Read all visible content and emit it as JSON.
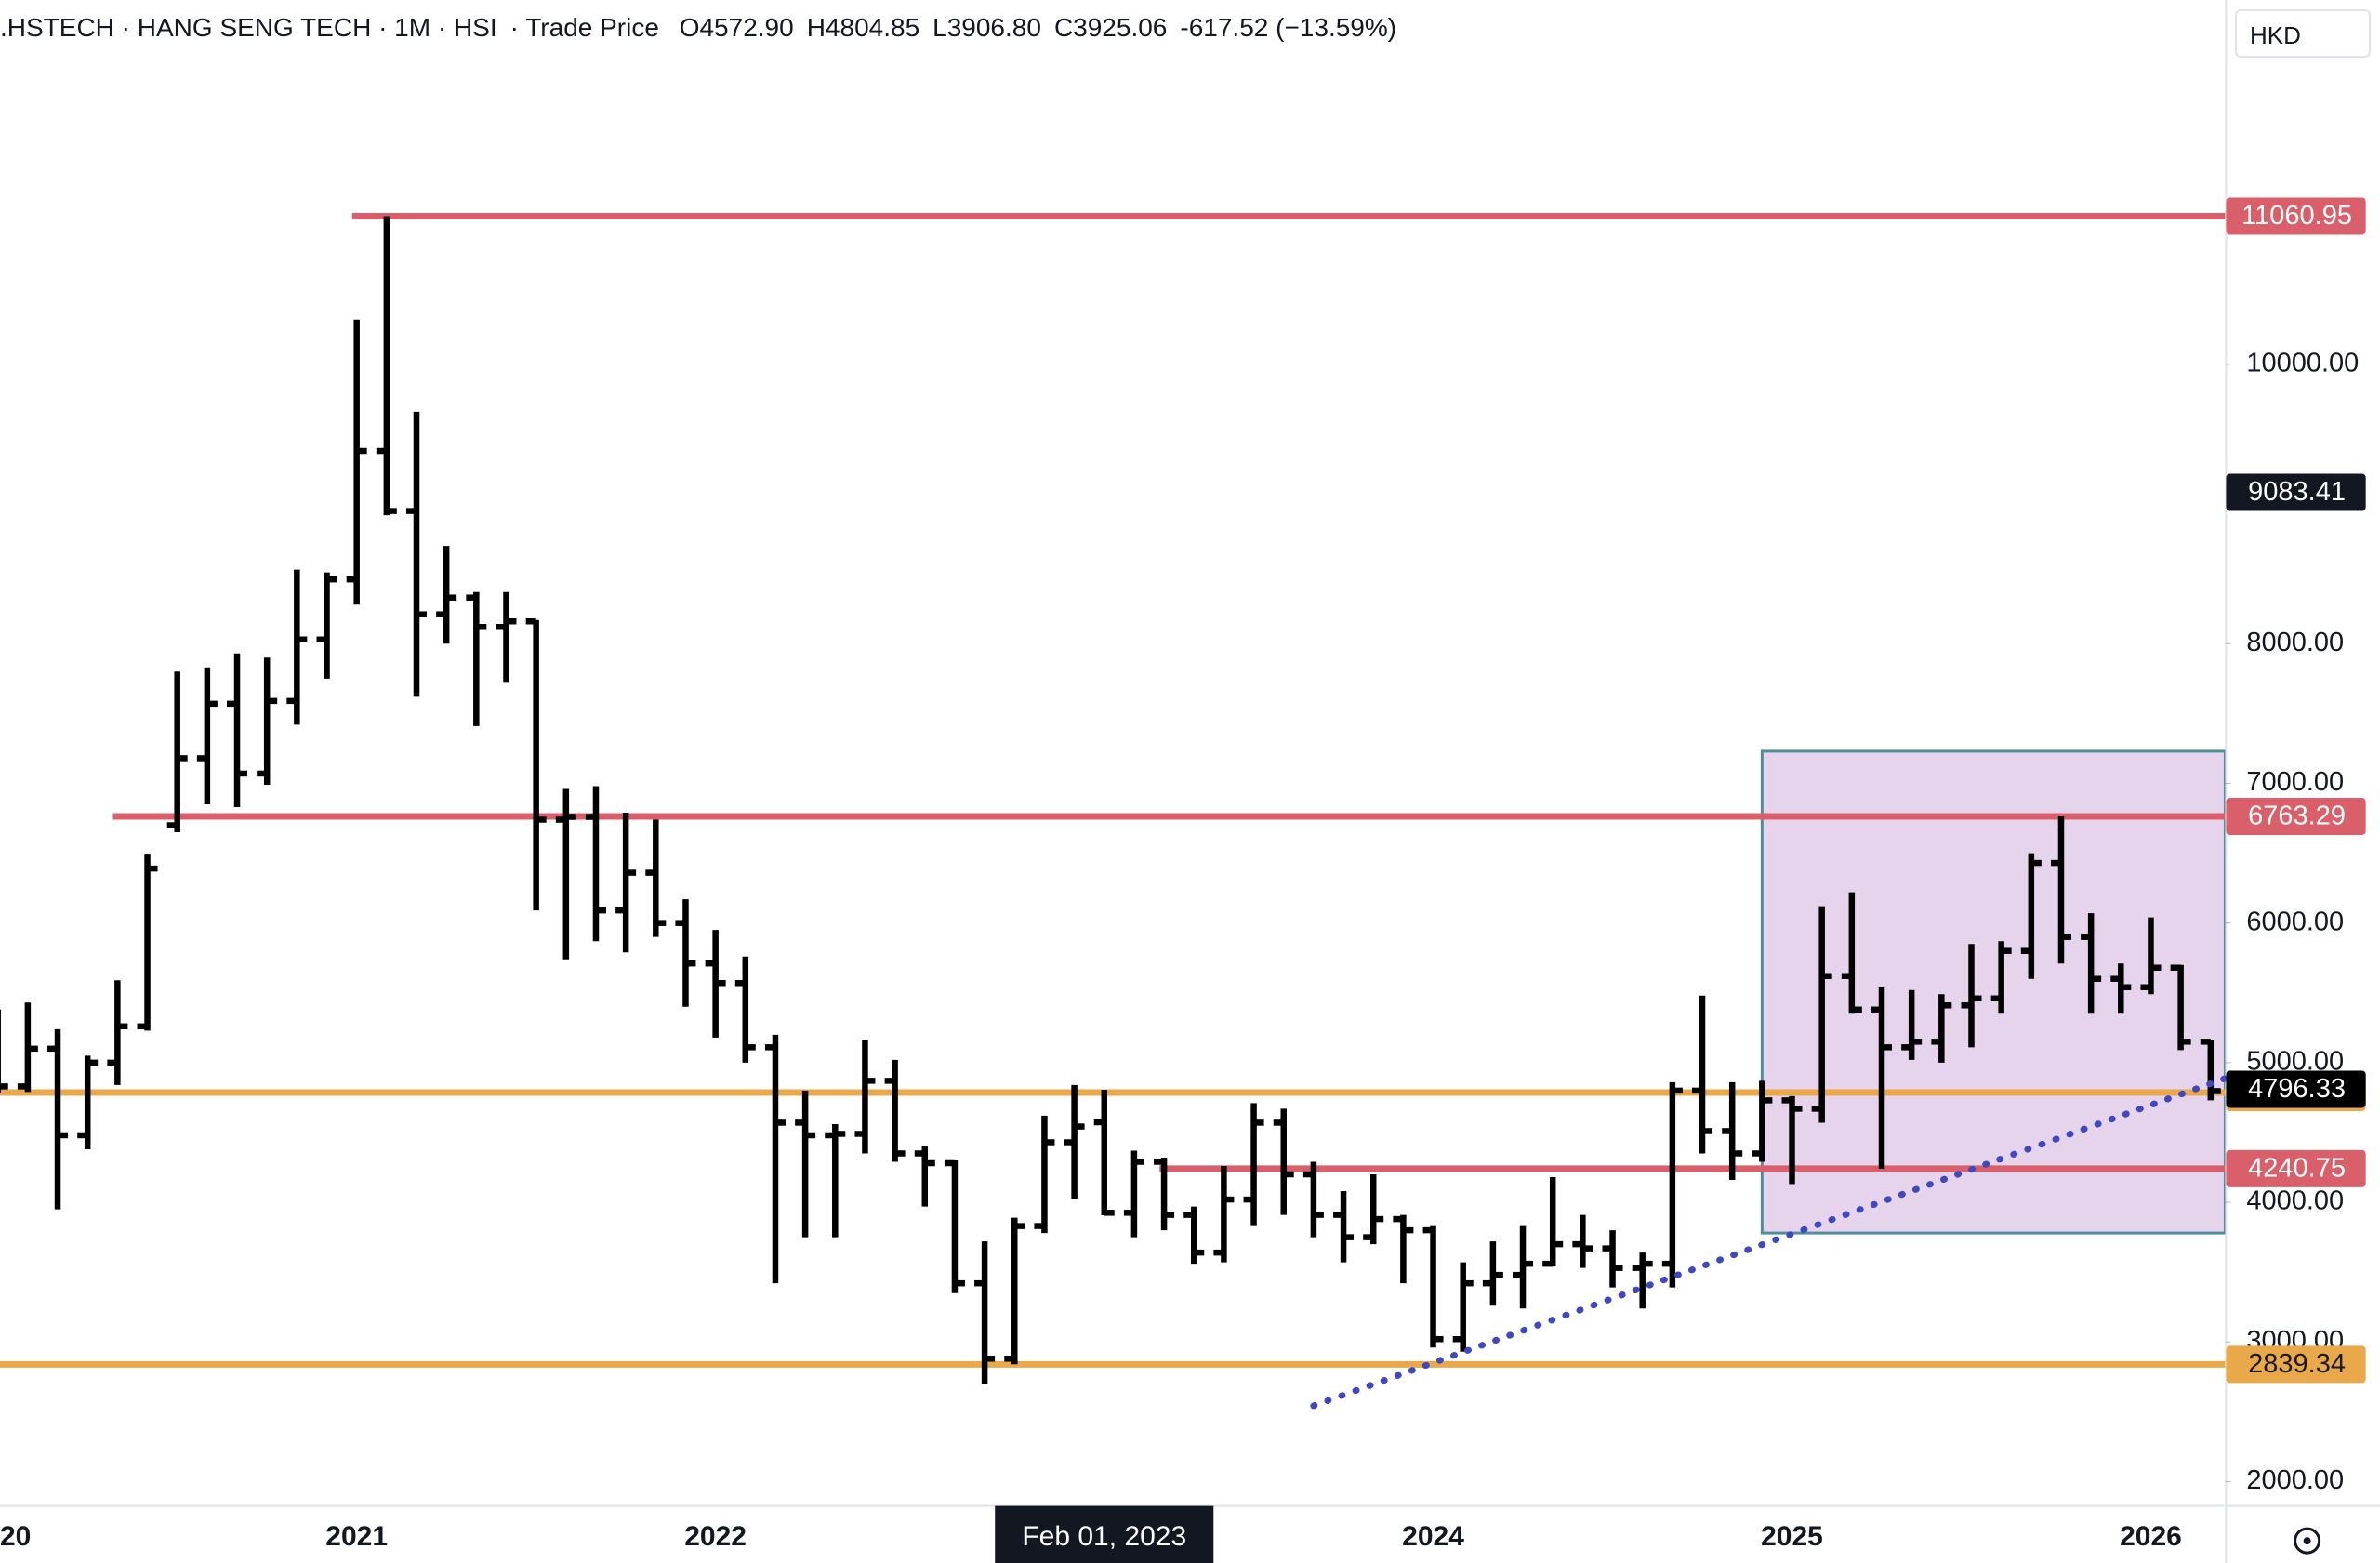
{
  "header": {
    "title": ".HSTECH · HANG SENG TECH · 1M · HSI",
    "source": "· Trade Price",
    "legend": [
      "O4572.90",
      "H4804.85",
      "L3906.80",
      "C3925.06",
      "-617.52 (−13.59%)"
    ],
    "currency": "HKD"
  },
  "chart_data": {
    "type": "ohlc",
    "color": "#000000",
    "x": [
      "2020-01",
      "2020-02",
      "2020-03",
      "2020-04",
      "2020-05",
      "2020-06",
      "2020-07",
      "2020-08",
      "2020-09",
      "2020-10",
      "2020-11",
      "2020-12",
      "2021-01",
      "2021-02",
      "2021-03",
      "2021-04",
      "2021-05",
      "2021-06",
      "2021-07",
      "2021-08",
      "2021-09",
      "2021-10",
      "2021-11",
      "2021-12",
      "2022-01",
      "2022-02",
      "2022-03",
      "2022-04",
      "2022-05",
      "2022-06",
      "2022-07",
      "2022-08",
      "2022-09",
      "2022-10",
      "2022-11",
      "2022-12",
      "2023-01",
      "2023-02",
      "2023-03",
      "2023-04",
      "2023-05",
      "2023-06",
      "2023-07",
      "2023-08",
      "2023-09",
      "2023-10",
      "2023-11",
      "2023-12",
      "2024-01",
      "2024-02",
      "2024-03",
      "2024-04",
      "2024-05",
      "2024-06",
      "2024-07",
      "2024-08",
      "2024-09",
      "2024-10",
      "2024-11",
      "2024-12",
      "2025-01",
      "2025-02",
      "2025-03",
      "2025-04",
      "2025-05",
      "2025-06",
      "2025-07",
      "2025-08",
      "2025-09",
      "2025-10",
      "2025-11",
      "2025-12",
      "2026-01",
      "2026-02",
      "2026-03"
    ],
    "open": [
      5000,
      4830,
      5100,
      4480,
      5000,
      5260,
      6700,
      7180,
      7570,
      7070,
      7590,
      8030,
      8460,
      9380,
      8950,
      8210,
      8330,
      8120,
      8160,
      6740,
      6760,
      6090,
      6360,
      6000,
      5710,
      5570,
      5110,
      4570,
      4480,
      4490,
      4870,
      4350,
      4280,
      3420,
      2880,
      3830,
      4430,
      4572.9,
      3925,
      4290,
      3910,
      3640,
      4020,
      4570,
      4200,
      3910,
      3750,
      3880,
      3800,
      3020,
      3420,
      3480,
      3560,
      3700,
      3670,
      3530,
      3560,
      4800,
      4510,
      4350,
      4730,
      4670,
      5620,
      5380,
      5110,
      5150,
      5410,
      5460,
      5800,
      6430,
      5900,
      5600,
      5540,
      5680,
      5150
    ],
    "high": [
      5380,
      5430,
      5240,
      5050,
      5590,
      6490,
      7800,
      7830,
      7930,
      7900,
      8530,
      8510,
      10320,
      11060.95,
      9660,
      8700,
      8370,
      8370,
      8170,
      6960,
      6980,
      6790,
      6740,
      6170,
      5950,
      5760,
      5200,
      4800,
      4560,
      5160,
      5020,
      4400,
      4300,
      3720,
      3890,
      4620,
      4840,
      4804.85,
      4370,
      4320,
      3970,
      4260,
      4710,
      4670,
      4290,
      4080,
      4200,
      3910,
      3830,
      3570,
      3720,
      3830,
      4180,
      3910,
      3800,
      3640,
      4860,
      5480,
      4860,
      4870,
      4760,
      6120,
      6220,
      5540,
      5520,
      5490,
      5850,
      5870,
      6500,
      6763.29,
      6070,
      5710,
      6040,
      5700,
      5160
    ],
    "low": [
      4780,
      4790,
      3950,
      4380,
      4840,
      5230,
      6650,
      6850,
      6830,
      6990,
      7420,
      7750,
      8280,
      8920,
      7620,
      8000,
      7410,
      7720,
      6090,
      5740,
      5870,
      5790,
      5900,
      5400,
      5180,
      5000,
      3420,
      3750,
      3750,
      4350,
      4290,
      3970,
      3350,
      2700,
      2840,
      3780,
      4020,
      3906.8,
      3750,
      3800,
      3560,
      3570,
      3830,
      3910,
      3750,
      3570,
      3700,
      3420,
      2960,
      2930,
      3260,
      3240,
      3540,
      3530,
      3390,
      3240,
      3390,
      4350,
      4160,
      4290,
      4130,
      4570,
      5350,
      4240.75,
      5020,
      5000,
      5110,
      5350,
      5600,
      5710,
      5350,
      5350,
      5490,
      5090,
      4730
    ],
    "close": [
      4830,
      5100,
      4480,
      5000,
      5260,
      6390,
      7180,
      7570,
      7070,
      7590,
      8030,
      8460,
      9380,
      8950,
      8210,
      8330,
      8120,
      8160,
      6740,
      6760,
      6090,
      6360,
      6000,
      5710,
      5570,
      5110,
      4570,
      4480,
      4490,
      4870,
      4350,
      4280,
      3420,
      2880,
      3830,
      4430,
      4542.58,
      3925.06,
      4290,
      3910,
      3640,
      4020,
      4570,
      4200,
      3910,
      3750,
      3880,
      3800,
      3020,
      3420,
      3480,
      3560,
      3700,
      3670,
      3530,
      3560,
      4800,
      4510,
      4350,
      4730,
      4670,
      5620,
      5380,
      5110,
      5150,
      5410,
      5460,
      5800,
      6430,
      5900,
      5600,
      5540,
      5680,
      5150,
      4796.33
    ],
    "ylim": [
      1826,
      12609
    ],
    "yticks": [
      {
        "value": 2000,
        "label": "2000.00"
      },
      {
        "value": 3000,
        "label": "3000.00"
      },
      {
        "value": 4000,
        "label": "4000.00"
      },
      {
        "value": 5000,
        "label": "5000.00"
      },
      {
        "value": 6000,
        "label": "6000.00"
      },
      {
        "value": 7000,
        "label": "7000.00"
      },
      {
        "value": 8000,
        "label": "8000.00"
      },
      {
        "value": 10000,
        "label": "10000.00"
      }
    ],
    "xticks": [
      {
        "value": "2020-01",
        "label": "20"
      },
      {
        "value": "2021-01",
        "label": "2021"
      },
      {
        "value": "2022-01",
        "label": "2022"
      },
      {
        "value": "2024-01",
        "label": "2024"
      },
      {
        "value": "2025-01",
        "label": "2025"
      },
      {
        "value": "2026-01",
        "label": "2026"
      }
    ],
    "levels": [
      {
        "value": 11060.95,
        "color": "#d9606a",
        "label_text_color": "#ffffff",
        "start": "2021-01"
      },
      {
        "value": 6763.29,
        "color": "#d9606a",
        "label_text_color": "#ffffff",
        "start": "2020-05"
      },
      {
        "value": 4785.75,
        "color": "#e9a94a",
        "label_text_color": "#1a1a1a"
      },
      {
        "value": 4240.75,
        "color": "#d9606a",
        "label_text_color": "#ffffff",
        "start": "2023-04"
      },
      {
        "value": 2839.34,
        "color": "#e9a94a",
        "label_text_color": "#1a1a1a"
      }
    ],
    "trendline": {
      "color": "#4048c0",
      "points": [
        {
          "x": "2023-09",
          "y": 2543
        },
        {
          "x": "2026-03",
          "y": 4850
        }
      ]
    },
    "box": {
      "start": "2024-12",
      "top": 7230,
      "bottom": 3780,
      "fill": "#e6d4ec",
      "stroke": "#4f8f9c"
    },
    "crosshair": {
      "date_label": "Feb 01, 2023",
      "date": "2023-02",
      "price": 9083.41
    }
  }
}
